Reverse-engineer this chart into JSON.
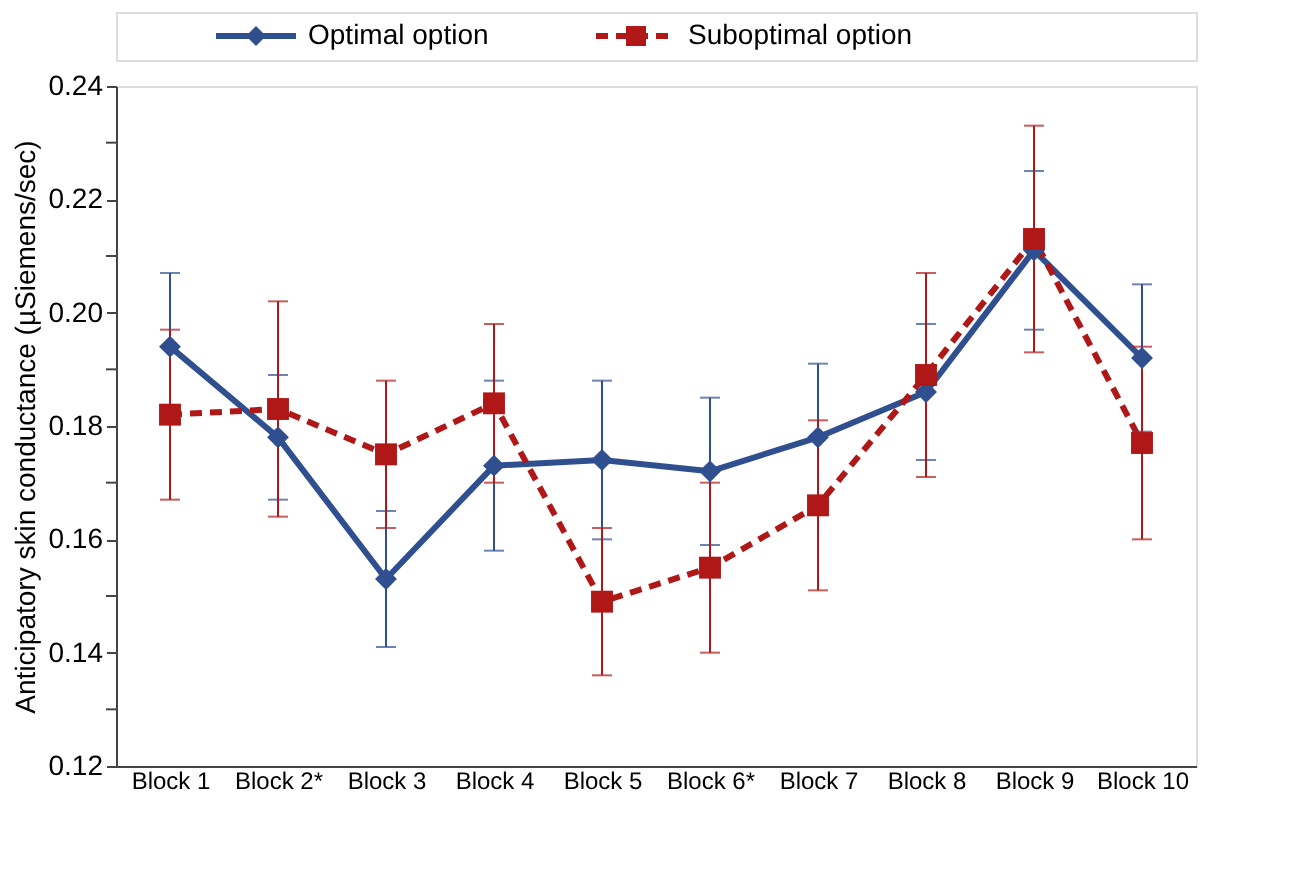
{
  "chart_data": {
    "type": "line",
    "ylabel": "Anticipatory skin conductance (µSiemens/sec)",
    "categories": [
      "Block 1",
      "Block 2*",
      "Block 3",
      "Block 4",
      "Block 5",
      "Block 6*",
      "Block 7",
      "Block 8",
      "Block 9",
      "Block 10"
    ],
    "series": [
      {
        "name": "Optimal option",
        "color": "#2f4f8f",
        "marker": "diamond",
        "line_style": "solid",
        "values": [
          0.194,
          0.178,
          0.153,
          0.173,
          0.174,
          0.172,
          0.178,
          0.186,
          0.211,
          0.192
        ],
        "errors": [
          0.013,
          0.011,
          0.012,
          0.015,
          0.014,
          0.013,
          0.013,
          0.012,
          0.014,
          0.013
        ]
      },
      {
        "name": "Suboptimal option",
        "color": "#b01818",
        "marker": "square",
        "line_style": "dashed",
        "values": [
          0.182,
          0.183,
          0.175,
          0.184,
          0.149,
          0.155,
          0.166,
          0.189,
          0.213,
          0.177
        ],
        "errors": [
          0.015,
          0.019,
          0.013,
          0.014,
          0.013,
          0.015,
          0.015,
          0.018,
          0.02,
          0.017
        ]
      }
    ],
    "ylim": [
      0.12,
      0.24
    ],
    "yticks": [
      0.12,
      {
        "value": 0.13,
        "label": null
      },
      0.14,
      {
        "value": 0.15,
        "label": null
      },
      0.16,
      {
        "value": 0.17,
        "label": null
      },
      0.18,
      {
        "value": 0.19,
        "label": null
      },
      {
        "value": 0.2,
        "label": "0.20"
      },
      {
        "value": 0.21,
        "label": null
      },
      0.22,
      {
        "value": 0.23,
        "label": null
      },
      0.24
    ],
    "grid": false,
    "legend": "top"
  }
}
